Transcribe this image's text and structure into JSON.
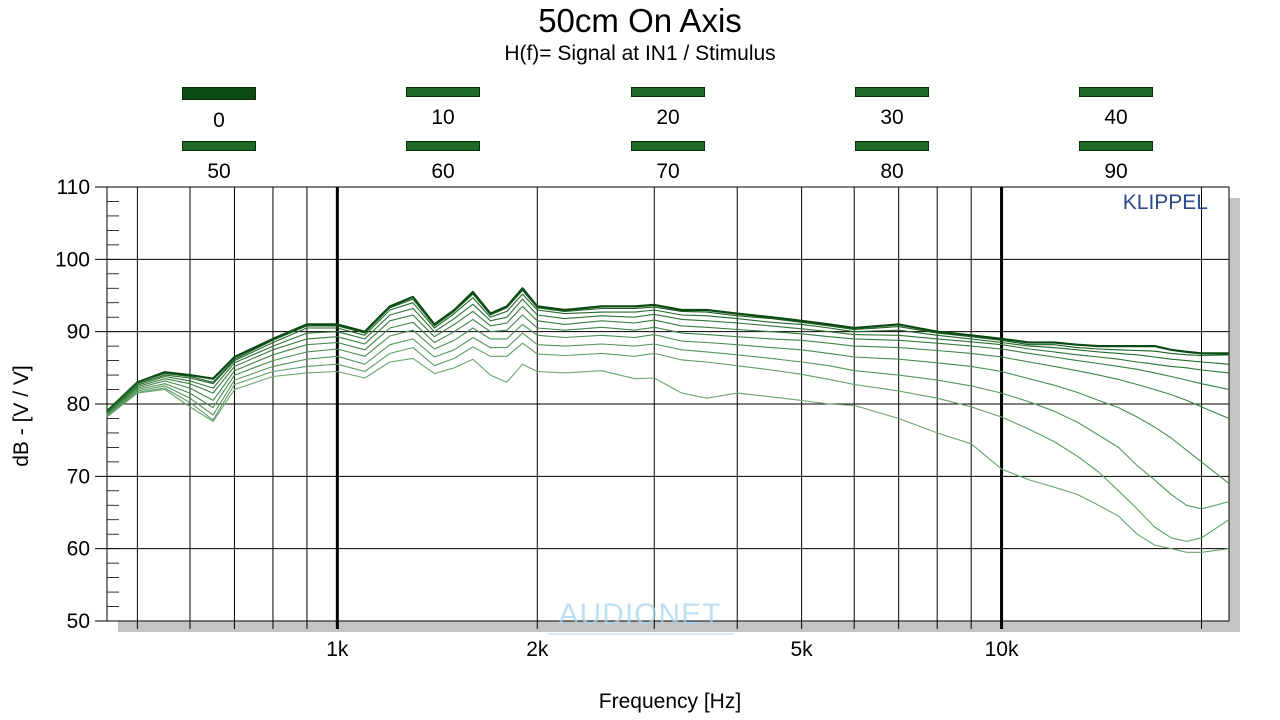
{
  "chart_data": {
    "type": "line",
    "title": "50cm On Axis",
    "subtitle": "H(f)= Signal at IN1 / Stimulus",
    "xlabel": "Frequency [Hz]",
    "ylabel": "dB - [V / V]",
    "x_scale": "log",
    "xlim": [
      450,
      22000
    ],
    "ylim": [
      50,
      110
    ],
    "x_ticks": [
      {
        "value": 1000,
        "label": "1k"
      },
      {
        "value": 2000,
        "label": "2k"
      },
      {
        "value": 5000,
        "label": "5k"
      },
      {
        "value": 10000,
        "label": "10k"
      }
    ],
    "y_ticks": [
      50,
      60,
      70,
      80,
      90,
      100,
      110
    ],
    "grid": true,
    "legend_position": "top",
    "watermark": "KLIPPEL",
    "logo_text": "AUDIONET",
    "series_color": "#2e7d32",
    "x": [
      450,
      500,
      550,
      600,
      650,
      700,
      800,
      900,
      1000,
      1100,
      1200,
      1300,
      1400,
      1500,
      1600,
      1700,
      1800,
      1900,
      2000,
      2200,
      2500,
      2800,
      3000,
      3300,
      3600,
      4000,
      4500,
      5000,
      5500,
      6000,
      7000,
      8000,
      9000,
      10000,
      11000,
      12000,
      13000,
      14000,
      15000,
      16000,
      17000,
      18000,
      19000,
      20000,
      22000
    ],
    "series": [
      {
        "name": "0",
        "values": [
          79,
          83,
          84.4,
          84,
          83.5,
          86.5,
          89,
          91,
          91,
          90,
          93.5,
          94.8,
          91,
          93,
          95.5,
          92.5,
          93.5,
          96,
          93.5,
          93,
          93.5,
          93.5,
          93.7,
          93,
          93,
          92.5,
          92,
          91.5,
          91,
          90.5,
          91,
          90,
          89.5,
          89,
          88.5,
          88.5,
          88.2,
          88,
          88,
          88,
          88,
          87.5,
          87.2,
          87,
          87
        ]
      },
      {
        "name": "10",
        "values": [
          79,
          83,
          84.2,
          83.8,
          83,
          86.2,
          88.8,
          90.8,
          90.8,
          89.8,
          93.3,
          94.5,
          90.8,
          92.8,
          95.2,
          92.3,
          93.3,
          95.7,
          93.3,
          92.8,
          93.2,
          93.2,
          93.4,
          92.8,
          92.7,
          92.2,
          91.8,
          91.3,
          90.8,
          90.3,
          90.7,
          89.8,
          89.3,
          88.8,
          88.2,
          88.2,
          87.8,
          87.6,
          87.5,
          87.4,
          87.3,
          87,
          86.8,
          86.7,
          86.8
        ]
      },
      {
        "name": "20",
        "values": [
          78.8,
          82.8,
          84,
          83.6,
          82.8,
          86,
          88.5,
          90.5,
          90.5,
          89.5,
          93,
          94,
          90.5,
          92.5,
          94.7,
          92,
          92.8,
          95.2,
          93,
          92.5,
          92.7,
          92.7,
          93,
          92.3,
          92.2,
          91.8,
          91.3,
          91,
          90.5,
          90,
          90.2,
          89.5,
          89,
          88.5,
          88,
          87.8,
          87.5,
          87.2,
          87,
          86.8,
          86.5,
          86.2,
          86,
          85.8,
          85.5
        ]
      },
      {
        "name": "30",
        "values": [
          78.8,
          82.6,
          83.8,
          83.2,
          82.2,
          85.7,
          88,
          89.8,
          90,
          89,
          92.3,
          93.2,
          90,
          91.8,
          93.8,
          91.5,
          92,
          94.5,
          92.3,
          91.8,
          92.2,
          92,
          92.4,
          91.7,
          91.5,
          91.2,
          90.8,
          90.4,
          90,
          89.6,
          89.5,
          89,
          88.6,
          88.2,
          87.6,
          87.2,
          86.8,
          86.5,
          86.2,
          85.8,
          85.5,
          85.2,
          85,
          84.7,
          84.3
        ]
      },
      {
        "name": "40",
        "values": [
          78.7,
          82.4,
          83.5,
          82.8,
          81.5,
          85.2,
          87.5,
          89,
          89.3,
          88.3,
          91.5,
          92.3,
          89.3,
          91,
          92.8,
          90.8,
          91.2,
          93.5,
          91.5,
          91,
          91.5,
          91.2,
          91.6,
          90.8,
          90.6,
          90.3,
          90,
          89.7,
          89.3,
          89,
          88.8,
          88.4,
          88,
          87.6,
          87,
          86.5,
          86,
          85.6,
          85.2,
          84.8,
          84.3,
          83.8,
          83.3,
          82.8,
          82
        ]
      },
      {
        "name": "50",
        "values": [
          78.6,
          82.2,
          83.2,
          82.2,
          80.5,
          84.6,
          86.8,
          88.2,
          88.5,
          87.5,
          90.5,
          91.3,
          88.5,
          90,
          91.7,
          90,
          90.2,
          92.3,
          90.5,
          90.2,
          90.6,
          90.2,
          90.6,
          89.8,
          89.6,
          89.3,
          89,
          88.8,
          88.4,
          88,
          87.8,
          87.4,
          87,
          86.5,
          85.8,
          85.2,
          84.6,
          84,
          83.4,
          82.7,
          82,
          81.3,
          80.5,
          79.6,
          78
        ]
      },
      {
        "name": "60",
        "values": [
          78.5,
          82,
          82.8,
          81.5,
          79.5,
          84,
          86,
          87.2,
          87.6,
          86.6,
          89.4,
          90.2,
          87.6,
          88.8,
          90.5,
          89,
          89,
          91,
          89.5,
          89.2,
          89.5,
          89.2,
          89.6,
          88.7,
          88.5,
          88.2,
          87.8,
          87.5,
          87,
          86.5,
          86.2,
          85.7,
          85.2,
          84.5,
          83.5,
          82.6,
          81.6,
          80.5,
          79.5,
          78.2,
          76.8,
          75.3,
          73.6,
          72,
          69
        ]
      },
      {
        "name": "70",
        "values": [
          78.4,
          81.8,
          82.5,
          80.8,
          78.5,
          83.3,
          85.2,
          86.2,
          86.6,
          85.5,
          88.2,
          89,
          86.5,
          87.5,
          89.2,
          87.8,
          87.8,
          89.8,
          88.2,
          88,
          88.3,
          88,
          88.3,
          87.5,
          87.2,
          86.8,
          86.3,
          85.8,
          85.3,
          84.6,
          84,
          83.3,
          82.5,
          81.5,
          80.3,
          79,
          77.5,
          75.7,
          74,
          71.5,
          69.5,
          67.5,
          66,
          65.5,
          66.5
        ]
      },
      {
        "name": "80",
        "values": [
          78.3,
          81.6,
          82.2,
          80.2,
          77.8,
          82.7,
          84.5,
          85.2,
          85.5,
          84.5,
          87,
          87.8,
          85.3,
          86.3,
          87.9,
          86.6,
          86.6,
          88.4,
          86.9,
          86.7,
          87,
          86.6,
          87,
          86.1,
          85.8,
          85.3,
          84.7,
          84.1,
          83.4,
          82.7,
          81.8,
          80.8,
          79.6,
          78.2,
          76.5,
          74.8,
          72.8,
          70.6,
          68,
          65.5,
          63,
          61.5,
          61,
          61.5,
          64
        ]
      },
      {
        "name": "90",
        "values": [
          78.2,
          81.5,
          82,
          79.6,
          77.6,
          82,
          83.8,
          84.3,
          84.5,
          83.6,
          85.8,
          86.3,
          84.2,
          85,
          86.2,
          84,
          83,
          85.5,
          84.5,
          84.3,
          84.6,
          83.5,
          83.6,
          81.5,
          80.8,
          81.5,
          81,
          80.5,
          80,
          79.8,
          78,
          76,
          74.5,
          71,
          69.5,
          68.5,
          67.5,
          66,
          64.5,
          62,
          60.5,
          60,
          59.5,
          59.5,
          60
        ]
      }
    ]
  }
}
